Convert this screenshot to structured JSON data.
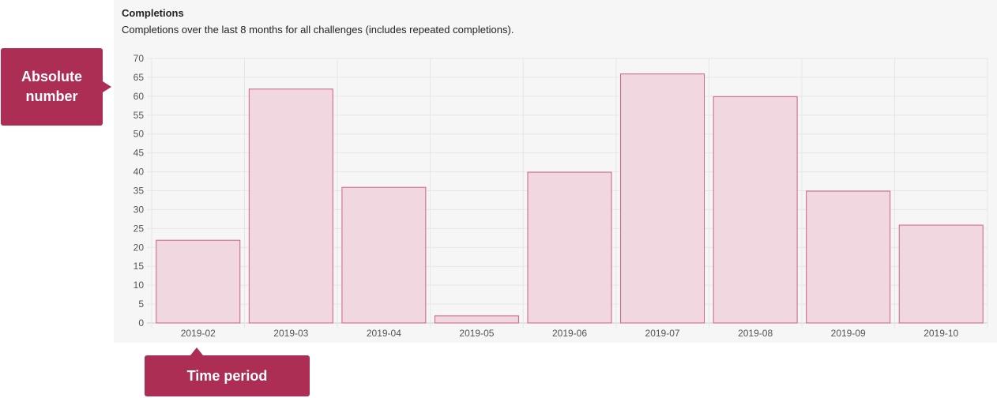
{
  "panel": {
    "title": "Completions",
    "subtitle": "Completions over the last 8 months for all challenges (includes repeated completions)."
  },
  "annotations": {
    "y_axis": "Absolute number",
    "x_axis": "Time period"
  },
  "colors": {
    "bar_fill": "#f1d7e0",
    "bar_stroke": "#cf5f86",
    "callout": "#ad2e55",
    "grid": "#e6e6e6"
  },
  "chart_data": {
    "type": "bar",
    "title": "Completions",
    "xlabel": "",
    "ylabel": "",
    "categories": [
      "2019-02",
      "2019-03",
      "2019-04",
      "2019-05",
      "2019-06",
      "2019-07",
      "2019-08",
      "2019-09",
      "2019-10"
    ],
    "values": [
      22,
      62,
      36,
      2,
      40,
      66,
      60,
      35,
      26
    ],
    "ylim": [
      0,
      70
    ],
    "yticks": [
      0,
      5,
      10,
      15,
      20,
      25,
      30,
      35,
      40,
      45,
      50,
      55,
      60,
      65,
      70
    ],
    "grid": true,
    "legend": "none"
  }
}
